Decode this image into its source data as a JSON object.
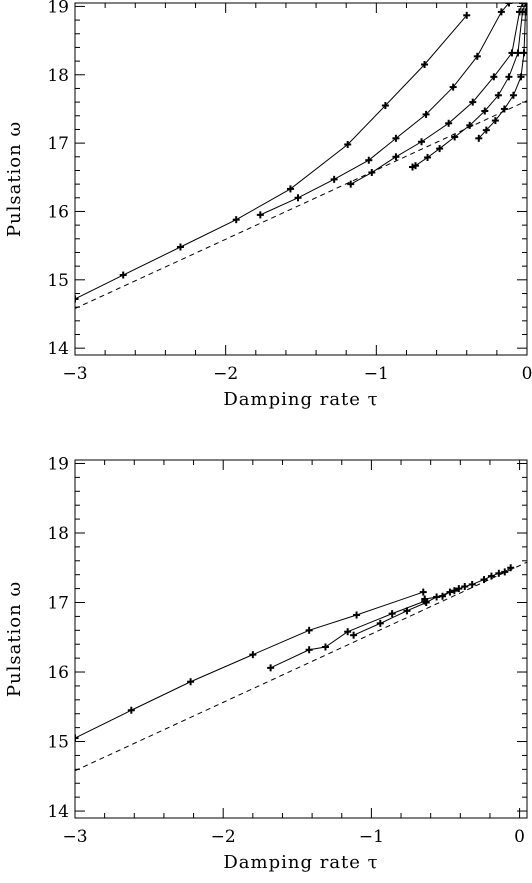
{
  "chart_data": [
    {
      "type": "line",
      "xlabel": "Damping rate τ",
      "ylabel": "Pulsation ω",
      "xlim": [
        -3,
        0
      ],
      "ylim": [
        13.9,
        19.05
      ],
      "xticks": [
        "−3",
        "−2",
        "−1",
        "0"
      ],
      "yticks": [
        "14",
        "15",
        "16",
        "17",
        "18",
        "19"
      ],
      "xtick_values": [
        -3,
        -2,
        -1,
        0
      ],
      "ytick_values": [
        14,
        15,
        16,
        17,
        18,
        19
      ],
      "grid": false,
      "series": [
        {
          "style": "solid",
          "markers": true,
          "points": [
            [
              -3.0,
              14.72
            ],
            [
              -2.68,
              15.07
            ],
            [
              -2.3,
              15.48
            ],
            [
              -1.93,
              15.88
            ],
            [
              -1.57,
              16.33
            ],
            [
              -1.19,
              16.98
            ],
            [
              -0.94,
              17.55
            ],
            [
              -0.68,
              18.15
            ],
            [
              -0.4,
              18.87
            ]
          ]
        },
        {
          "style": "solid",
          "markers": true,
          "points": [
            [
              -1.77,
              15.95
            ],
            [
              -1.52,
              16.2
            ],
            [
              -1.28,
              16.47
            ],
            [
              -1.05,
              16.75
            ],
            [
              -0.87,
              17.07
            ],
            [
              -0.67,
              17.42
            ],
            [
              -0.49,
              17.82
            ],
            [
              -0.33,
              18.27
            ],
            [
              -0.17,
              18.92
            ],
            [
              -0.12,
              19.05
            ]
          ]
        },
        {
          "style": "solid",
          "markers": true,
          "points": [
            [
              -1.17,
              16.4
            ],
            [
              -1.03,
              16.57
            ],
            [
              -0.87,
              16.8
            ],
            [
              -0.7,
              17.02
            ],
            [
              -0.52,
              17.29
            ],
            [
              -0.36,
              17.6
            ],
            [
              -0.22,
              17.97
            ],
            [
              -0.1,
              18.32
            ],
            [
              -0.05,
              18.92
            ],
            [
              -0.03,
              19.05
            ]
          ]
        },
        {
          "style": "solid",
          "markers": true,
          "points": [
            [
              -0.76,
              16.65
            ],
            [
              -0.74,
              16.67
            ],
            [
              -0.66,
              16.79
            ],
            [
              -0.58,
              16.92
            ],
            [
              -0.48,
              17.09
            ],
            [
              -0.38,
              17.26
            ],
            [
              -0.28,
              17.47
            ],
            [
              -0.19,
              17.7
            ],
            [
              -0.12,
              17.97
            ],
            [
              -0.06,
              18.32
            ],
            [
              -0.03,
              18.92
            ],
            [
              -0.01,
              19.05
            ]
          ]
        },
        {
          "style": "solid",
          "markers": true,
          "points": [
            [
              -0.32,
              17.07
            ],
            [
              -0.27,
              17.19
            ],
            [
              -0.21,
              17.33
            ],
            [
              -0.15,
              17.5
            ],
            [
              -0.09,
              17.7
            ],
            [
              -0.04,
              17.97
            ],
            [
              -0.02,
              18.32
            ],
            [
              -0.01,
              18.92
            ],
            [
              0.0,
              19.05
            ]
          ]
        },
        {
          "style": "dashed",
          "markers": false,
          "points": [
            [
              -3.0,
              14.58
            ],
            [
              0.0,
              17.62
            ]
          ]
        }
      ]
    },
    {
      "type": "line",
      "xlabel": "Damping rate τ",
      "ylabel": "Pulsation ω",
      "xlim": [
        -3,
        0.05
      ],
      "ylim": [
        13.9,
        19.05
      ],
      "xticks": [
        "−3",
        "−2",
        "−1",
        "0"
      ],
      "yticks": [
        "14",
        "15",
        "16",
        "17",
        "18",
        "19"
      ],
      "xtick_values": [
        -3,
        -2,
        -1,
        0
      ],
      "ytick_values": [
        14,
        15,
        16,
        17,
        18,
        19
      ],
      "grid": false,
      "series": [
        {
          "style": "solid",
          "markers": true,
          "points": [
            [
              -3.0,
              15.05
            ],
            [
              -2.62,
              15.45
            ],
            [
              -2.22,
              15.86
            ],
            [
              -1.8,
              16.25
            ],
            [
              -1.42,
              16.6
            ],
            [
              -1.1,
              16.82
            ],
            [
              -0.65,
              17.15
            ]
          ]
        },
        {
          "style": "solid",
          "markers": true,
          "points": [
            [
              -1.68,
              16.06
            ],
            [
              -1.42,
              16.32
            ],
            [
              -1.31,
              16.36
            ],
            [
              -1.16,
              16.58
            ],
            [
              -0.86,
              16.84
            ],
            [
              -0.64,
              17.02
            ]
          ]
        },
        {
          "style": "solid",
          "markers": true,
          "points": [
            [
              -1.12,
              16.53
            ],
            [
              -0.94,
              16.7
            ],
            [
              -0.76,
              16.88
            ],
            [
              -0.63,
              17.0
            ],
            [
              -0.56,
              17.08
            ],
            [
              -0.44,
              17.17
            ],
            [
              -0.37,
              17.23
            ],
            [
              -0.32,
              17.26
            ],
            [
              -0.24,
              17.33
            ],
            [
              -0.19,
              17.38
            ],
            [
              -0.14,
              17.42
            ],
            [
              -0.1,
              17.44
            ],
            [
              -0.06,
              17.5
            ]
          ]
        },
        {
          "style": "solid",
          "markers": true,
          "points": [
            [
              -0.64,
              17.05
            ],
            [
              -0.52,
              17.09
            ],
            [
              -0.47,
              17.15
            ],
            [
              -0.41,
              17.2
            ]
          ]
        },
        {
          "style": "dashed",
          "markers": false,
          "points": [
            [
              -3.0,
              14.58
            ],
            [
              0.05,
              17.58
            ]
          ]
        }
      ]
    }
  ]
}
